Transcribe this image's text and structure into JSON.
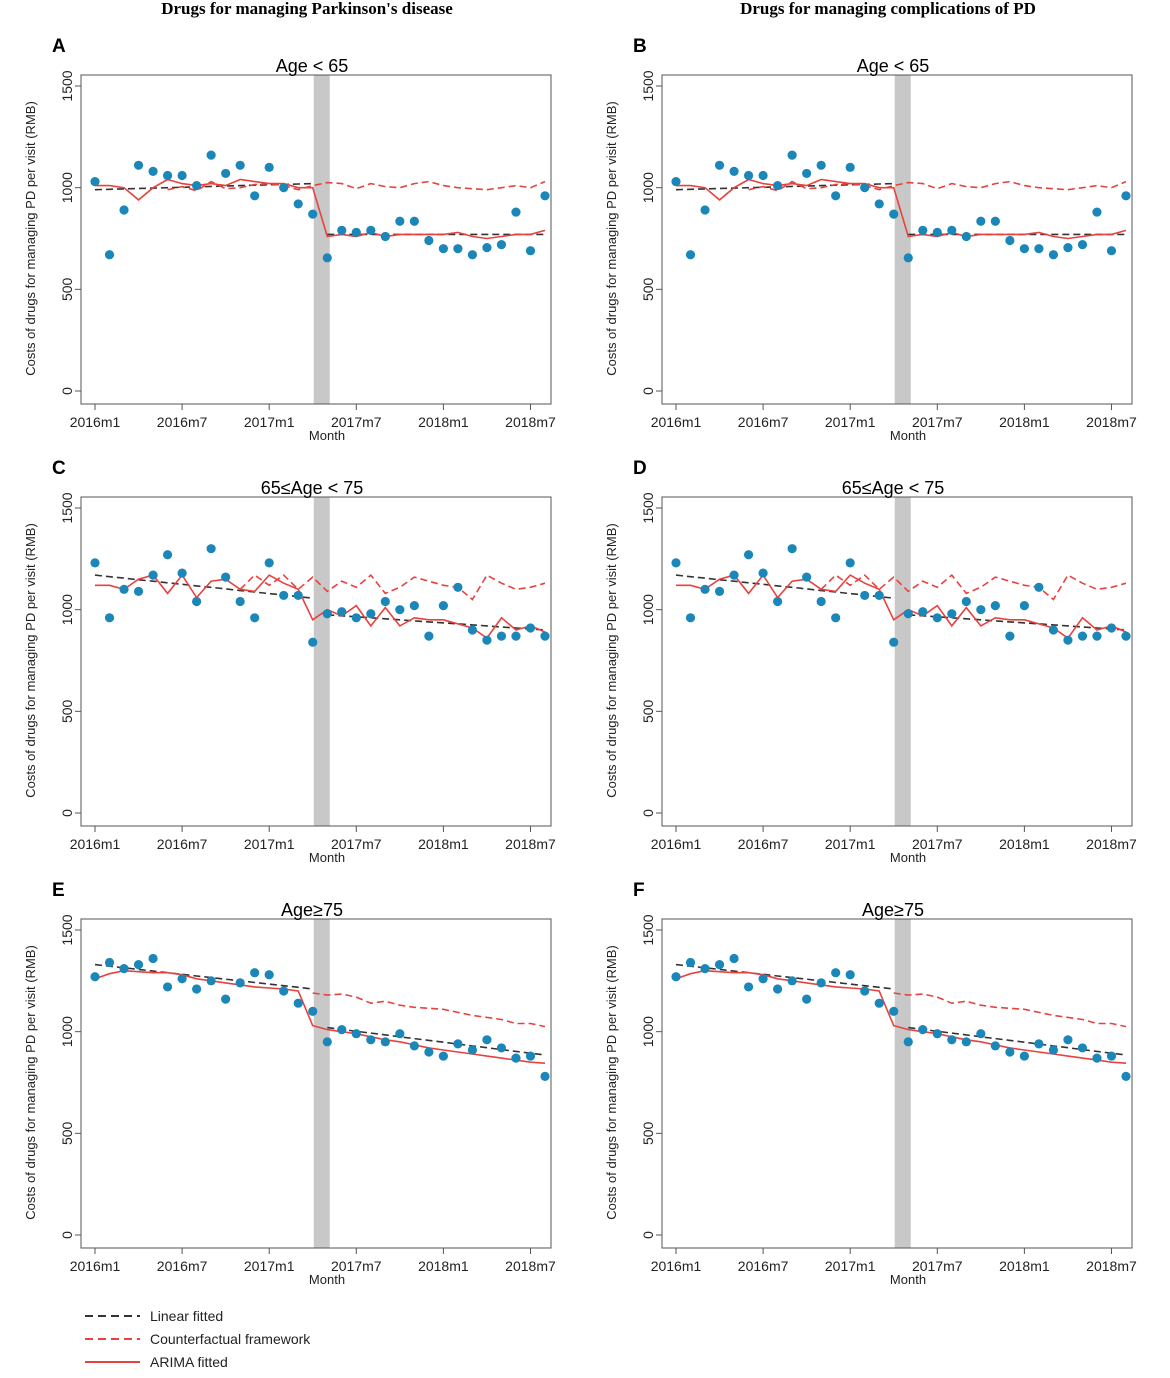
{
  "column_titles": [
    "Drugs for managing Parkinson's disease",
    "Drugs for managing complications of PD"
  ],
  "legend": [
    {
      "label": "Linear fitted",
      "style": "dashed",
      "color": "#333333"
    },
    {
      "label": "Counterfactual framework",
      "style": "dashed",
      "color": "#e8423f"
    },
    {
      "label": "ARIMA fitted",
      "style": "solid",
      "color": "#e8423f"
    }
  ],
  "colors": {
    "points": "#1a87b8",
    "linear": "#333333",
    "counterfactual": "#e8423f",
    "arima": "#e8423f",
    "intervention_band": "#c8c8c8",
    "axis": "#555555"
  },
  "chart_data": [
    {
      "panel": "A",
      "type": "scatter",
      "title": "Age < 65",
      "xlabel": "Month",
      "ylabel": "Costs of drugs for managing PD per visit (RMB)",
      "x_ticks": [
        "2016m1",
        "2016m7",
        "2017m1",
        "2017m7",
        "2018m1",
        "2018m7"
      ],
      "y_ticks": [
        0,
        500,
        1000,
        1500
      ],
      "ylim": [
        0,
        1500
      ],
      "intervention_month_index": 15,
      "observed": [
        1030,
        670,
        890,
        1110,
        1080,
        1060,
        1060,
        1010,
        1160,
        1070,
        1110,
        960,
        1100,
        1000,
        920,
        870,
        655,
        790,
        780,
        790,
        760,
        835,
        835,
        740,
        700,
        700,
        670,
        705,
        720,
        880,
        690,
        960
      ],
      "linear_fitted": [
        990,
        992,
        994,
        996,
        998,
        1000,
        1002,
        1004,
        1006,
        1008,
        1010,
        1012,
        1014,
        1016,
        1018,
        1020,
        770,
        770,
        770,
        770,
        770,
        770,
        770,
        770,
        770,
        770,
        770,
        770,
        770,
        770,
        770,
        770
      ],
      "counterfactual": [
        990,
        1005,
        985,
        1030,
        995,
        1000,
        1015,
        1020,
        1010,
        990,
        1010,
        1025,
        1020,
        995,
        1020,
        1005,
        1000,
        1020,
        1030,
        1010,
        1000,
        995,
        990,
        1000,
        1010,
        1000,
        1030
      ],
      "arima_fitted": [
        1010,
        1010,
        1000,
        940,
        1000,
        1040,
        1020,
        1010,
        1020,
        1010,
        1040,
        1030,
        1020,
        1020,
        1000,
        1000,
        760,
        770,
        760,
        780,
        760,
        770,
        770,
        770,
        770,
        780,
        760,
        750,
        760,
        770,
        770,
        790
      ]
    },
    {
      "panel": "B",
      "type": "scatter",
      "title": "Age < 65",
      "xlabel": "Month",
      "ylabel": "Costs of drugs for managing PD per visit (RMB)",
      "x_ticks": [
        "2016m1",
        "2016m7",
        "2017m1",
        "2017m7",
        "2018m1",
        "2018m7"
      ],
      "y_ticks": [
        0,
        500,
        1000,
        1500
      ],
      "ylim": [
        0,
        1500
      ],
      "intervention_month_index": 15,
      "observed": [
        1030,
        670,
        890,
        1110,
        1080,
        1060,
        1060,
        1010,
        1160,
        1070,
        1110,
        960,
        1100,
        1000,
        920,
        870,
        655,
        790,
        780,
        790,
        760,
        835,
        835,
        740,
        700,
        700,
        670,
        705,
        720,
        880,
        690,
        960
      ],
      "linear_fitted": [
        990,
        992,
        994,
        996,
        998,
        1000,
        1002,
        1004,
        1006,
        1008,
        1010,
        1012,
        1014,
        1016,
        1018,
        1020,
        770,
        770,
        770,
        770,
        770,
        770,
        770,
        770,
        770,
        770,
        770,
        770,
        770,
        770,
        770,
        770
      ],
      "counterfactual": [
        990,
        1005,
        985,
        1030,
        995,
        1000,
        1015,
        1020,
        1010,
        990,
        1010,
        1025,
        1020,
        995,
        1020,
        1005,
        1000,
        1020,
        1030,
        1010,
        1000,
        995,
        990,
        1000,
        1010,
        1000,
        1030
      ],
      "arima_fitted": [
        1010,
        1010,
        1000,
        940,
        1000,
        1040,
        1020,
        1010,
        1020,
        1010,
        1040,
        1030,
        1020,
        1020,
        1000,
        1000,
        760,
        770,
        760,
        780,
        760,
        770,
        770,
        770,
        770,
        780,
        760,
        750,
        760,
        770,
        770,
        790
      ]
    },
    {
      "panel": "C",
      "type": "scatter",
      "title": "65≤Age < 75",
      "xlabel": "Month",
      "ylabel": "Costs of drugs for managing PD per visit (RMB)",
      "x_ticks": [
        "2016m1",
        "2016m7",
        "2017m1",
        "2017m7",
        "2018m1",
        "2018m7"
      ],
      "y_ticks": [
        0,
        500,
        1000,
        1500
      ],
      "ylim": [
        0,
        1500
      ],
      "intervention_month_index": 15,
      "observed": [
        1230,
        960,
        1100,
        1090,
        1170,
        1270,
        1180,
        1040,
        1300,
        1160,
        1040,
        960,
        1230,
        1070,
        1070,
        840,
        980,
        990,
        960,
        980,
        1040,
        1000,
        1020,
        870,
        1020,
        1110,
        900,
        850,
        870,
        870,
        910,
        870
      ],
      "linear_fitted": [
        1170,
        1162,
        1155,
        1147,
        1140,
        1132,
        1125,
        1117,
        1110,
        1102,
        1094,
        1087,
        1079,
        1072,
        1064,
        1057,
        975,
        970,
        965,
        960,
        955,
        950,
        945,
        940,
        935,
        930,
        925,
        920,
        915,
        910,
        905,
        900
      ],
      "counterfactual": [
        1100,
        1170,
        1120,
        1170,
        1100,
        1160,
        1090,
        1140,
        1110,
        1170,
        1080,
        1110,
        1160,
        1140,
        1120,
        1110,
        1050,
        1170,
        1130,
        1100,
        1110,
        1130
      ],
      "arima_fitted": [
        1120,
        1120,
        1100,
        1150,
        1170,
        1080,
        1170,
        1060,
        1140,
        1150,
        1100,
        1090,
        1170,
        1130,
        1100,
        950,
        1000,
        970,
        1020,
        920,
        1010,
        920,
        960,
        950,
        950,
        930,
        910,
        860,
        960,
        900,
        920,
        890
      ]
    },
    {
      "panel": "D",
      "type": "scatter",
      "title": "65≤Age < 75",
      "xlabel": "Month",
      "ylabel": "Costs of drugs for managing PD per visit (RMB)",
      "x_ticks": [
        "2016m1",
        "2016m7",
        "2017m1",
        "2017m7",
        "2018m1",
        "2018m7"
      ],
      "y_ticks": [
        0,
        500,
        1000,
        1500
      ],
      "ylim": [
        0,
        1500
      ],
      "intervention_month_index": 15,
      "observed": [
        1230,
        960,
        1100,
        1090,
        1170,
        1270,
        1180,
        1040,
        1300,
        1160,
        1040,
        960,
        1230,
        1070,
        1070,
        840,
        980,
        990,
        960,
        980,
        1040,
        1000,
        1020,
        870,
        1020,
        1110,
        900,
        850,
        870,
        870,
        910,
        870
      ],
      "linear_fitted": [
        1170,
        1162,
        1155,
        1147,
        1140,
        1132,
        1125,
        1117,
        1110,
        1102,
        1094,
        1087,
        1079,
        1072,
        1064,
        1057,
        975,
        970,
        965,
        960,
        955,
        950,
        945,
        940,
        935,
        930,
        925,
        920,
        915,
        910,
        905,
        900
      ],
      "counterfactual": [
        1100,
        1170,
        1120,
        1170,
        1100,
        1160,
        1090,
        1140,
        1110,
        1170,
        1080,
        1110,
        1160,
        1140,
        1120,
        1110,
        1050,
        1170,
        1130,
        1100,
        1110,
        1130
      ],
      "arima_fitted": [
        1120,
        1120,
        1100,
        1150,
        1170,
        1080,
        1170,
        1060,
        1140,
        1150,
        1100,
        1090,
        1170,
        1130,
        1100,
        950,
        1000,
        970,
        1020,
        920,
        1010,
        920,
        960,
        950,
        950,
        930,
        910,
        860,
        960,
        900,
        920,
        890
      ]
    },
    {
      "panel": "E",
      "type": "scatter",
      "title": "Age≥75",
      "xlabel": "Month",
      "ylabel": "Costs of drugs for managing PD per visit (RMB)",
      "x_ticks": [
        "2016m1",
        "2016m7",
        "2017m1",
        "2017m7",
        "2018m1",
        "2018m7"
      ],
      "y_ticks": [
        0,
        500,
        1000,
        1500
      ],
      "ylim": [
        0,
        1500
      ],
      "intervention_month_index": 15,
      "observed": [
        1270,
        1340,
        1310,
        1330,
        1360,
        1220,
        1260,
        1210,
        1250,
        1160,
        1240,
        1290,
        1280,
        1200,
        1140,
        1100,
        950,
        1010,
        990,
        960,
        950,
        990,
        930,
        900,
        880,
        940,
        910,
        960,
        920,
        870,
        880,
        780
      ],
      "linear_fitted": [
        1330,
        1322,
        1314,
        1306,
        1298,
        1290,
        1282,
        1274,
        1266,
        1258,
        1250,
        1242,
        1234,
        1226,
        1218,
        1210,
        1020,
        1011,
        1002,
        993,
        984,
        975,
        966,
        957,
        948,
        939,
        930,
        921,
        912,
        903,
        894,
        885
      ],
      "counterfactual": [
        1190,
        1180,
        1185,
        1170,
        1140,
        1150,
        1130,
        1120,
        1115,
        1110,
        1095,
        1080,
        1070,
        1060,
        1040,
        1040,
        1025
      ],
      "arima_fitted": [
        1260,
        1285,
        1300,
        1295,
        1290,
        1290,
        1280,
        1260,
        1250,
        1240,
        1230,
        1220,
        1215,
        1210,
        1200,
        1030,
        1010,
        1000,
        990,
        975,
        960,
        950,
        935,
        920,
        910,
        900,
        890,
        880,
        870,
        860,
        850,
        845
      ]
    },
    {
      "panel": "F",
      "type": "scatter",
      "title": "Age≥75",
      "xlabel": "Month",
      "ylabel": "Costs of drugs for managing PD per visit (RMB)",
      "x_ticks": [
        "2016m1",
        "2016m7",
        "2017m1",
        "2017m7",
        "2018m1",
        "2018m7"
      ],
      "y_ticks": [
        0,
        500,
        1000,
        1500
      ],
      "ylim": [
        0,
        1500
      ],
      "intervention_month_index": 15,
      "observed": [
        1270,
        1340,
        1310,
        1330,
        1360,
        1220,
        1260,
        1210,
        1250,
        1160,
        1240,
        1290,
        1280,
        1200,
        1140,
        1100,
        950,
        1010,
        990,
        960,
        950,
        990,
        930,
        900,
        880,
        940,
        910,
        960,
        920,
        870,
        880,
        780
      ],
      "linear_fitted": [
        1330,
        1322,
        1314,
        1306,
        1298,
        1290,
        1282,
        1274,
        1266,
        1258,
        1250,
        1242,
        1234,
        1226,
        1218,
        1210,
        1020,
        1011,
        1002,
        993,
        984,
        975,
        966,
        957,
        948,
        939,
        930,
        921,
        912,
        903,
        894,
        885
      ],
      "counterfactual": [
        1190,
        1180,
        1185,
        1170,
        1140,
        1150,
        1130,
        1120,
        1115,
        1110,
        1095,
        1080,
        1070,
        1060,
        1040,
        1040,
        1025
      ],
      "arima_fitted": [
        1260,
        1285,
        1300,
        1295,
        1290,
        1290,
        1280,
        1260,
        1250,
        1240,
        1230,
        1220,
        1215,
        1210,
        1200,
        1030,
        1010,
        1000,
        990,
        975,
        960,
        950,
        935,
        920,
        910,
        900,
        890,
        880,
        870,
        860,
        850,
        845
      ]
    }
  ]
}
